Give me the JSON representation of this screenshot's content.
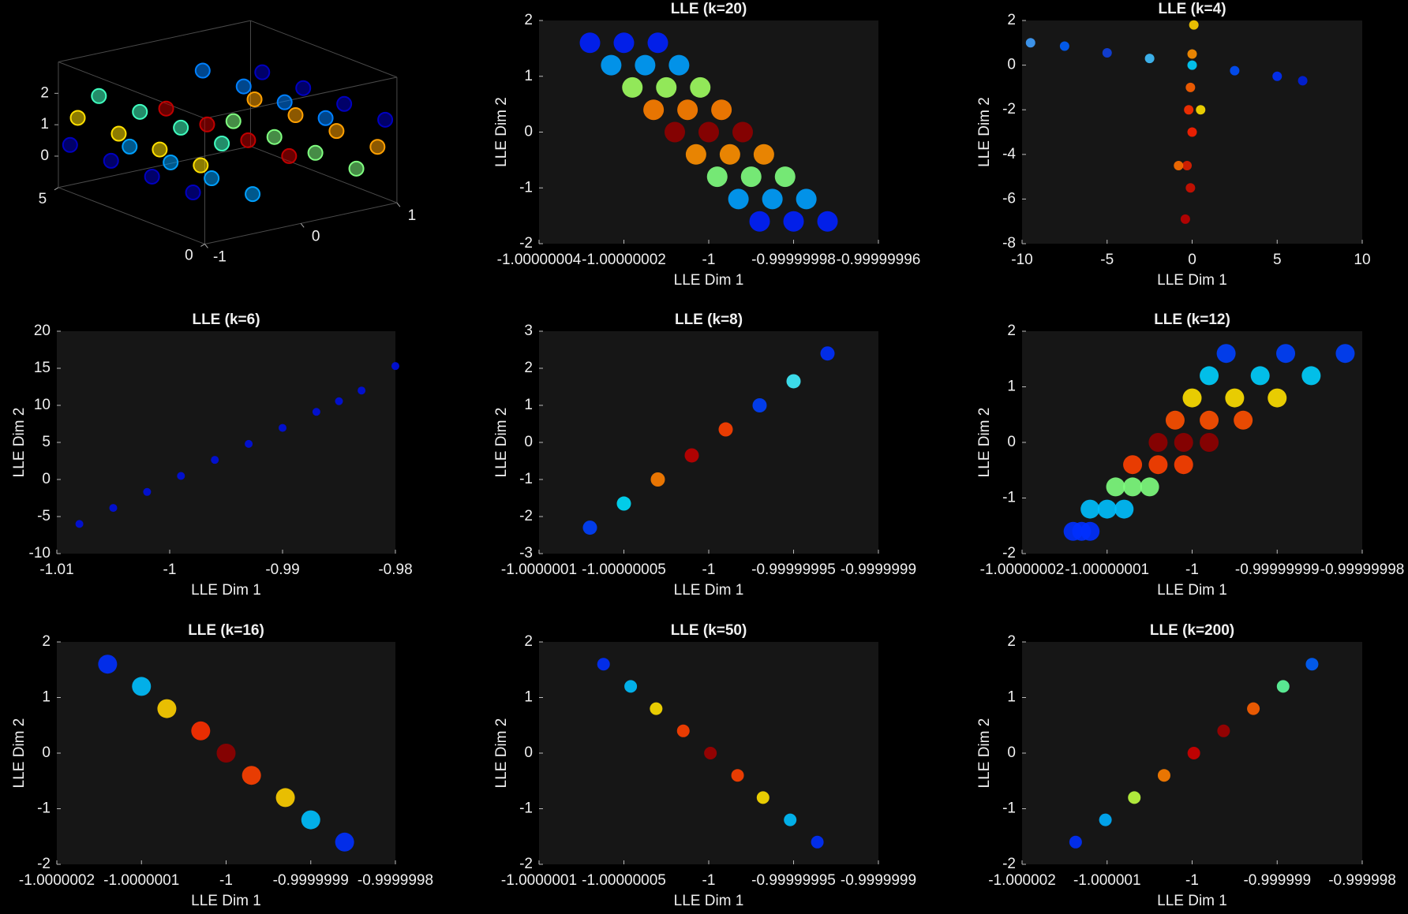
{
  "chart_data": [
    {
      "type": "scatter3d",
      "xlim": [
        -1,
        1
      ],
      "ylim": [
        0,
        5
      ],
      "zlim": [
        -1,
        3
      ],
      "xticks": [
        -1,
        0,
        1
      ],
      "yticks": [
        0,
        5
      ],
      "zticks": [
        0,
        1,
        2
      ],
      "x": [
        1,
        1,
        1,
        1,
        0.38,
        0.38,
        0.38,
        0.38,
        -0.7,
        -0.7,
        -0.7,
        -0.7,
        -0.92,
        -0.92,
        -0.92,
        -0.92,
        0,
        0,
        0,
        0,
        0.92,
        0.92,
        0.92,
        0.92,
        0.7,
        0.7,
        0.7,
        0.7,
        -0.38,
        -0.38,
        -0.38,
        -0.38,
        -1,
        -1,
        -1,
        -1
      ],
      "y": [
        0.4,
        1.8,
        3.2,
        4.6,
        0.4,
        1.8,
        3.2,
        4.6,
        0.4,
        1.8,
        3.2,
        4.6,
        0.4,
        1.8,
        3.2,
        4.6,
        0.4,
        1.8,
        3.2,
        4.6,
        0.4,
        1.8,
        3.2,
        4.6,
        0.4,
        1.8,
        3.2,
        4.6,
        0.4,
        1.8,
        3.2,
        4.6,
        0.4,
        1.8,
        3.2,
        4.6
      ],
      "z": [
        1.5,
        1.5,
        1.5,
        1.5,
        1.96,
        1.96,
        1.96,
        1.96,
        1.86,
        1.86,
        1.86,
        1.86,
        1.31,
        1.31,
        1.31,
        1.31,
        1,
        1,
        1,
        1,
        0.69,
        0.69,
        0.69,
        0.69,
        0.14,
        0.14,
        0.14,
        0.14,
        0.04,
        0.04,
        0.04,
        0.04,
        0.5,
        0.5,
        0.5,
        0.5
      ],
      "colors": [
        "#0000c0",
        "#0000c0",
        "#0000c0",
        "#0000c0",
        "#0080ff",
        "#0080ff",
        "#0080ff",
        "#0080ff",
        "#40ffc0",
        "#40ffc0",
        "#40ffc0",
        "#40ffc0",
        "#ffe000",
        "#ffe000",
        "#ffe000",
        "#ffe000",
        "#c00000",
        "#c00000",
        "#c00000",
        "#c00000",
        "#ffa000",
        "#ffa000",
        "#ffa000",
        "#ffa000",
        "#80ff80",
        "#80ff80",
        "#80ff80",
        "#80ff80",
        "#00a0ff",
        "#00a0ff",
        "#00a0ff",
        "#00a0ff",
        "#0000c0",
        "#0000c0",
        "#0000c0",
        "#0000c0"
      ]
    },
    {
      "type": "scatter",
      "title": "LLE (k=20)",
      "x_label": "LLE Dim 1",
      "y_label": "LLE Dim 2",
      "xlim": [
        -1.00000004,
        -0.99999996
      ],
      "ylim": [
        -2,
        2
      ],
      "xticks": [
        -1.00000004,
        -1.00000002,
        -1,
        -0.99999998,
        -0.99999996
      ],
      "yticks": [
        -2,
        -1,
        0,
        1,
        2
      ],
      "x": [
        -1.000000028,
        -1.00000002,
        -1.000000012,
        -1.000000023,
        -1.000000015,
        -1.000000007,
        -1.000000018,
        -1.00000001,
        -1.000000002,
        -1.000000013,
        -1.000000005,
        -0.999999997,
        -1.000000008,
        -1,
        -0.999999992,
        -1.000000003,
        -0.999999995,
        -0.999999987,
        -0.999999998,
        -0.99999999,
        -0.999999982,
        -0.999999993,
        -0.999999985,
        -0.999999977,
        -0.999999988,
        -0.99999998,
        -0.999999972
      ],
      "y": [
        1.6,
        1.6,
        1.6,
        1.2,
        1.2,
        1.2,
        0.8,
        0.8,
        0.8,
        0.4,
        0.4,
        0.4,
        0,
        0,
        0,
        -0.4,
        -0.4,
        -0.4,
        -0.8,
        -0.8,
        -0.8,
        -1.2,
        -1.2,
        -1.2,
        -1.6,
        -1.6,
        -1.6
      ],
      "colors": [
        "#0020ff",
        "#0020ff",
        "#0020ff",
        "#00a0ff",
        "#00a0ff",
        "#00a0ff",
        "#a0ff60",
        "#a0ff60",
        "#a0ff60",
        "#ff8000",
        "#ff8000",
        "#ff8000",
        "#900000",
        "#900000",
        "#900000",
        "#ff9000",
        "#ff9000",
        "#ff9000",
        "#80ff80",
        "#80ff80",
        "#80ff80",
        "#00a0ff",
        "#00a0ff",
        "#00a0ff",
        "#0020ff",
        "#0020ff",
        "#0020ff"
      ],
      "radius": 13
    },
    {
      "type": "scatter",
      "title": "LLE (k=4)",
      "x_label": "LLE Dim 1",
      "y_label": "LLE Dim 2",
      "xlim": [
        -10,
        10
      ],
      "ylim": [
        -8,
        2
      ],
      "xticks": [
        -10,
        -5,
        0,
        5,
        10
      ],
      "yticks": [
        -8,
        -6,
        -4,
        -2,
        0,
        2
      ],
      "x": [
        -9.5,
        -7.5,
        -5,
        -2.5,
        0,
        2.5,
        5,
        6.5,
        0.1,
        0,
        -0.1,
        -0.2,
        0,
        -0.3,
        -0.1,
        -0.4,
        -0.8,
        0.5
      ],
      "y": [
        1,
        0.85,
        0.55,
        0.3,
        0,
        -0.25,
        -0.5,
        -0.7,
        1.8,
        0.5,
        -1,
        -2,
        -3,
        -4.5,
        -5.5,
        -6.9,
        -4.5,
        -2
      ],
      "colors": [
        "#40a0ff",
        "#0060ff",
        "#1040e0",
        "#40c0ff",
        "#00d0ff",
        "#0050ff",
        "#0030ff",
        "#0020e0",
        "#ffd000",
        "#ff9000",
        "#ff6000",
        "#ff3000",
        "#ff2000",
        "#e02000",
        "#d01000",
        "#c00000",
        "#ff7000",
        "#ffe000"
      ],
      "radius": 6
    },
    {
      "type": "scatter",
      "title": "LLE (k=6)",
      "x_label": "LLE Dim 1",
      "y_label": "LLE Dim 2",
      "xlim": [
        -1.01,
        -0.98
      ],
      "ylim": [
        -10,
        20
      ],
      "xticks": [
        -1.01,
        -1,
        -0.99,
        -0.98
      ],
      "yticks": [
        -10,
        -5,
        0,
        5,
        10,
        15,
        20
      ],
      "x": [
        -1.008,
        -1.005,
        -1.002,
        -0.999,
        -0.996,
        -0.993,
        -0.99,
        -0.987,
        -0.985,
        -0.983,
        -0.98
      ],
      "y": [
        -6,
        -3.84,
        -1.68,
        0.48,
        2.64,
        4.8,
        6.96,
        9.12,
        10.56,
        12,
        15.3
      ],
      "colors": [
        "#0010e0",
        "#0010e0",
        "#0010e0",
        "#0010e0",
        "#0010e0",
        "#0010e0",
        "#0010e0",
        "#0010e0",
        "#0010e0",
        "#0010e0",
        "#0010e0"
      ],
      "radius": 5
    },
    {
      "type": "scatter",
      "title": "LLE (k=8)",
      "x_label": "LLE Dim 1",
      "y_label": "LLE Dim 2",
      "xlim": [
        -1.0000001,
        -0.9999999
      ],
      "ylim": [
        -3,
        3
      ],
      "xticks": [
        -1.0000001,
        -1.00000005,
        -1,
        -0.99999995,
        -0.9999999
      ],
      "yticks": [
        -3,
        -2,
        -1,
        0,
        1,
        2,
        3
      ],
      "x": [
        -1.00000007,
        -1.00000005,
        -1.00000003,
        -1.00000001,
        -0.99999999,
        -0.99999997,
        -0.99999995,
        -0.99999993
      ],
      "y": [
        -2.3,
        -1.65,
        -1,
        -0.35,
        0.35,
        1,
        1.65,
        2.4
      ],
      "colors": [
        "#0040ff",
        "#00e0ff",
        "#ff8000",
        "#c00000",
        "#ff4000",
        "#0040ff",
        "#40f0ff",
        "#0030ff"
      ],
      "radius": 9
    },
    {
      "type": "scatter",
      "title": "LLE (k=12)",
      "x_label": "LLE Dim 1",
      "y_label": "LLE Dim 2",
      "xlim": [
        -1.00000002,
        -0.99999998
      ],
      "ylim": [
        -2,
        2
      ],
      "xticks": [
        -1.00000002,
        -1.00000001,
        -1,
        -0.99999999,
        -0.99999998
      ],
      "yticks": [
        -2,
        -1,
        0,
        1,
        2
      ],
      "x": [
        -1.000000014,
        -1.000000013,
        -1.000000012,
        -1.000000012,
        -1.00000001,
        -1.000000008,
        -1.000000009,
        -1.000000007,
        -1.000000005,
        -1.000000007,
        -1.000000004,
        -1.000000001,
        -1.000000004,
        -1.000000001,
        -0.999999998,
        -1.000000002,
        -0.999999998,
        -0.999999994,
        -1,
        -0.999999995,
        -0.99999999,
        -0.999999998,
        -0.999999992,
        -0.999999986,
        -0.999999996,
        -0.999999989,
        -0.999999982
      ],
      "y": [
        -1.6,
        -1.6,
        -1.6,
        -1.2,
        -1.2,
        -1.2,
        -0.8,
        -0.8,
        -0.8,
        -0.4,
        -0.4,
        -0.4,
        0,
        0,
        0,
        0.4,
        0.4,
        0.4,
        0.8,
        0.8,
        0.8,
        1.2,
        1.2,
        1.2,
        1.6,
        1.6,
        1.6
      ],
      "colors": [
        "#0030ff",
        "#0030ff",
        "#0030ff",
        "#00c0ff",
        "#00c0ff",
        "#00c0ff",
        "#80ff80",
        "#80ff80",
        "#80ff80",
        "#ff4000",
        "#ff4000",
        "#ff4000",
        "#900000",
        "#900000",
        "#900000",
        "#ff5000",
        "#ff5000",
        "#ff5000",
        "#ffe000",
        "#ffe000",
        "#ffe000",
        "#00d0ff",
        "#00d0ff",
        "#00d0ff",
        "#0040ff",
        "#0040ff",
        "#0040ff"
      ],
      "radius": 12
    },
    {
      "type": "scatter",
      "title": "LLE (k=16)",
      "x_label": "LLE Dim 1",
      "y_label": "LLE Dim 2",
      "xlim": [
        -1.0000002,
        -0.9999998
      ],
      "ylim": [
        -2,
        2
      ],
      "xticks": [
        -1.0000002,
        -1.0000001,
        -1,
        -0.9999999,
        -0.9999998
      ],
      "yticks": [
        -2,
        -1,
        0,
        1,
        2
      ],
      "x": [
        -1.00000014,
        -1.0000001,
        -1.00000007,
        -1.00000003,
        -1,
        -0.99999997,
        -0.99999993,
        -0.9999999,
        -0.99999986
      ],
      "y": [
        1.6,
        1.2,
        0.8,
        0.4,
        0,
        -0.4,
        -0.8,
        -1.2,
        -1.6
      ],
      "colors": [
        "#0030ff",
        "#00c0ff",
        "#ffd000",
        "#ff3000",
        "#900000",
        "#ff4000",
        "#ffd000",
        "#00c0ff",
        "#0030ff"
      ],
      "radius": 12
    },
    {
      "type": "scatter",
      "title": "LLE (k=50)",
      "x_label": "LLE Dim 1",
      "y_label": "LLE Dim 2",
      "xlim": [
        -1.0000001,
        -0.9999999
      ],
      "ylim": [
        -2,
        2
      ],
      "xticks": [
        -1.0000001,
        -1.00000005,
        -1,
        -0.99999995,
        -0.9999999
      ],
      "yticks": [
        -2,
        -1,
        0,
        1,
        2
      ],
      "x": [
        -1.000000062,
        -1.000000046,
        -1.000000031,
        -1.000000015,
        -0.999999999,
        -0.999999983,
        -0.999999968,
        -0.999999952,
        -0.999999936
      ],
      "y": [
        1.6,
        1.2,
        0.8,
        0.4,
        0,
        -0.4,
        -0.8,
        -1.2,
        -1.6
      ],
      "colors": [
        "#0030ff",
        "#00c0ff",
        "#ffe000",
        "#ff4000",
        "#a00000",
        "#ff4000",
        "#ffe000",
        "#00c0ff",
        "#0030ff"
      ],
      "radius": 8
    },
    {
      "type": "scatter",
      "title": "LLE (k=200)",
      "x_label": "LLE Dim 1",
      "y_label": "LLE Dim 2",
      "xlim": [
        -1.000002,
        -0.999998
      ],
      "ylim": [
        -2,
        2
      ],
      "xticks": [
        -1.000002,
        -1.000001,
        -1,
        -0.999999,
        -0.999998
      ],
      "yticks": [
        -2,
        -1,
        0,
        1,
        2
      ],
      "x": [
        -1.00000137,
        -1.00000102,
        -1.00000068,
        -1.00000033,
        -0.99999998,
        -0.99999963,
        -0.99999928,
        -0.99999893,
        -0.99999859
      ],
      "y": [
        -1.6,
        -1.2,
        -0.8,
        -0.4,
        0,
        0.4,
        0.8,
        1.2,
        1.6
      ],
      "colors": [
        "#0030ff",
        "#00b0ff",
        "#c0ff40",
        "#ff8000",
        "#d00000",
        "#a00000",
        "#ff6000",
        "#60ffa0",
        "#0060ff"
      ],
      "radius": 8
    }
  ]
}
